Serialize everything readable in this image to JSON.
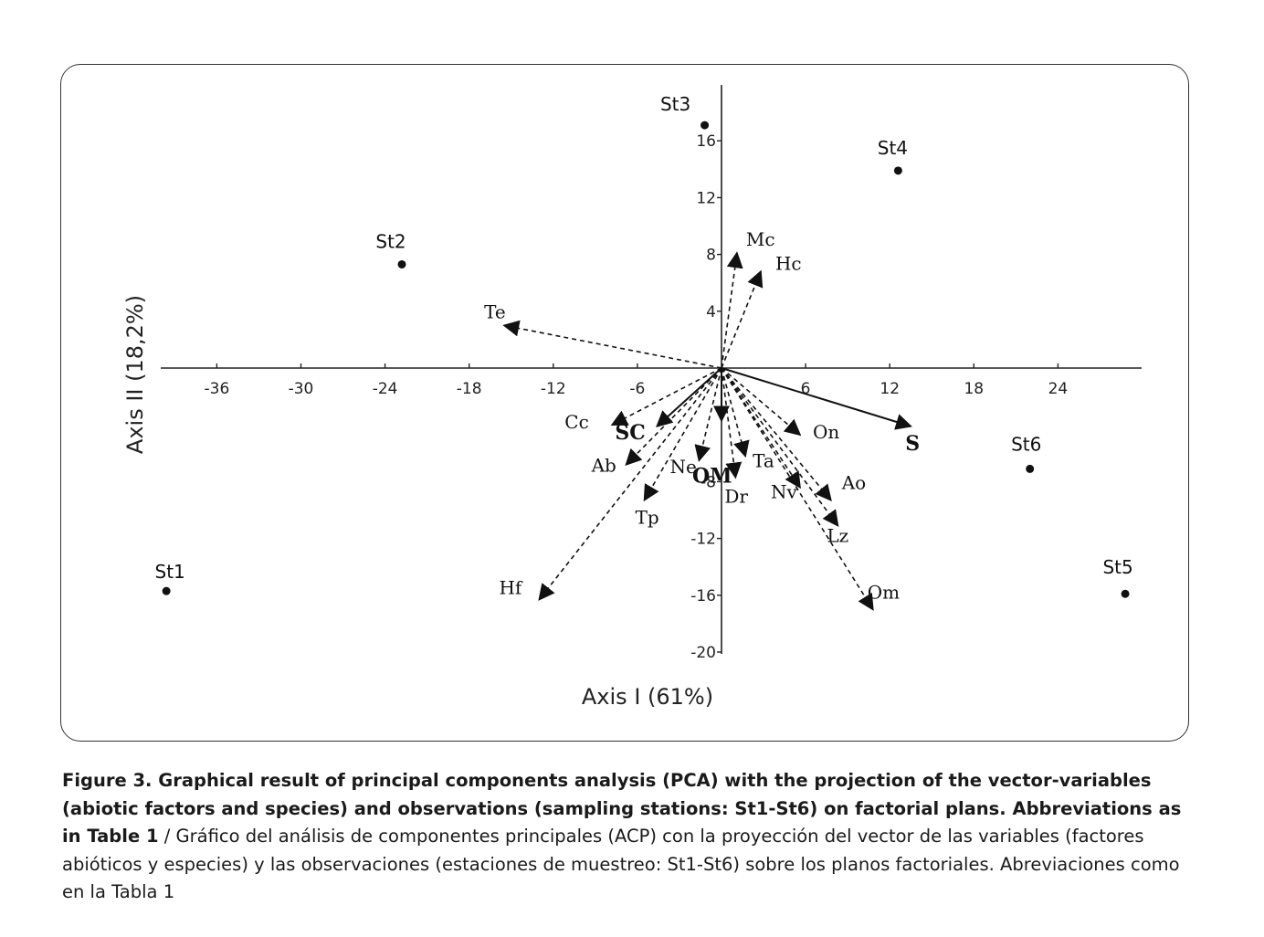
{
  "chart_data": {
    "type": "scatter",
    "title": "",
    "xlabel": "Axis I (61%)",
    "ylabel": "Axis II (18,2%)",
    "xlim": [
      -40,
      30
    ],
    "ylim": [
      -20,
      20
    ],
    "x_ticks": [
      -36,
      -30,
      -24,
      -18,
      -12,
      -6,
      6,
      12,
      18,
      24
    ],
    "y_ticks": [
      16,
      12,
      8,
      4,
      -8,
      -12,
      -16,
      -20
    ],
    "tick_labels_x": [
      "-36",
      "-30",
      "-24",
      "-18",
      "-12",
      "-6",
      "6",
      "12",
      "18",
      "24"
    ],
    "tick_labels_y": [
      "16",
      "12",
      "8",
      "4",
      "-8",
      "-12",
      "-16",
      "-20"
    ],
    "observations": [
      {
        "label": "St1",
        "x": -39.6,
        "y": -15.7
      },
      {
        "label": "St2",
        "x": -22.8,
        "y": 7.3
      },
      {
        "label": "St3",
        "x": -1.2,
        "y": 17.1
      },
      {
        "label": "St4",
        "x": 12.6,
        "y": 13.9
      },
      {
        "label": "St5",
        "x": 28.8,
        "y": -15.9
      },
      {
        "label": "St6",
        "x": 22.0,
        "y": -7.1
      }
    ],
    "vectors": [
      {
        "label": "Mc",
        "x": 1.1,
        "y": 8.1,
        "style": "dashed"
      },
      {
        "label": "Hc",
        "x": 2.8,
        "y": 6.8,
        "style": "dashed"
      },
      {
        "label": "Te",
        "x": -15.5,
        "y": 3.0,
        "style": "dashed"
      },
      {
        "label": "S",
        "x": 13.5,
        "y": -4.1,
        "style": "solid"
      },
      {
        "label": "On",
        "x": 5.6,
        "y": -4.7,
        "style": "dashed"
      },
      {
        "label": "Cc",
        "x": -7.8,
        "y": -4.0,
        "style": "dashed"
      },
      {
        "label": "SC",
        "x": -4.6,
        "y": -4.1,
        "style": "solid"
      },
      {
        "label": "OM",
        "x": 0.0,
        "y": -3.7,
        "style": "solid"
      },
      {
        "label": "Ab",
        "x": -6.8,
        "y": -6.8,
        "style": "dashed"
      },
      {
        "label": "Ne",
        "x": -1.6,
        "y": -6.5,
        "style": "dashed"
      },
      {
        "label": "Ta",
        "x": 1.7,
        "y": -6.2,
        "style": "dashed"
      },
      {
        "label": "Dr",
        "x": 1.0,
        "y": -7.7,
        "style": "dashed"
      },
      {
        "label": "Nv",
        "x": 5.6,
        "y": -8.4,
        "style": "dashed"
      },
      {
        "label": "Ao",
        "x": 7.8,
        "y": -9.3,
        "style": "dashed"
      },
      {
        "label": "Lz",
        "x": 8.3,
        "y": -11.1,
        "style": "dashed"
      },
      {
        "label": "Tp",
        "x": -5.5,
        "y": -9.3,
        "style": "dashed"
      },
      {
        "label": "Hf",
        "x": -13.0,
        "y": -16.3,
        "style": "dashed"
      },
      {
        "label": "Om",
        "x": 10.8,
        "y": -17.0,
        "style": "dashed"
      }
    ],
    "grid": false,
    "legend": "none"
  },
  "caption": {
    "bold_text": "Figure 3. Graphical result of principal components analysis (PCA) with the projection of the vector-variables (abiotic factors and species) and observations (sampling stations: St1-St6) on factorial plans. Abbreviations as in Table 1",
    "separator": " / ",
    "normal_text": "Gráfico del análisis de componentes principales (ACP) con la proyección del vector de las variables (factores abióticos y especies) y las observaciones (estaciones de muestreo: St1-St6) sobre los planos factoriales. Abreviaciones como en la Tabla 1"
  }
}
